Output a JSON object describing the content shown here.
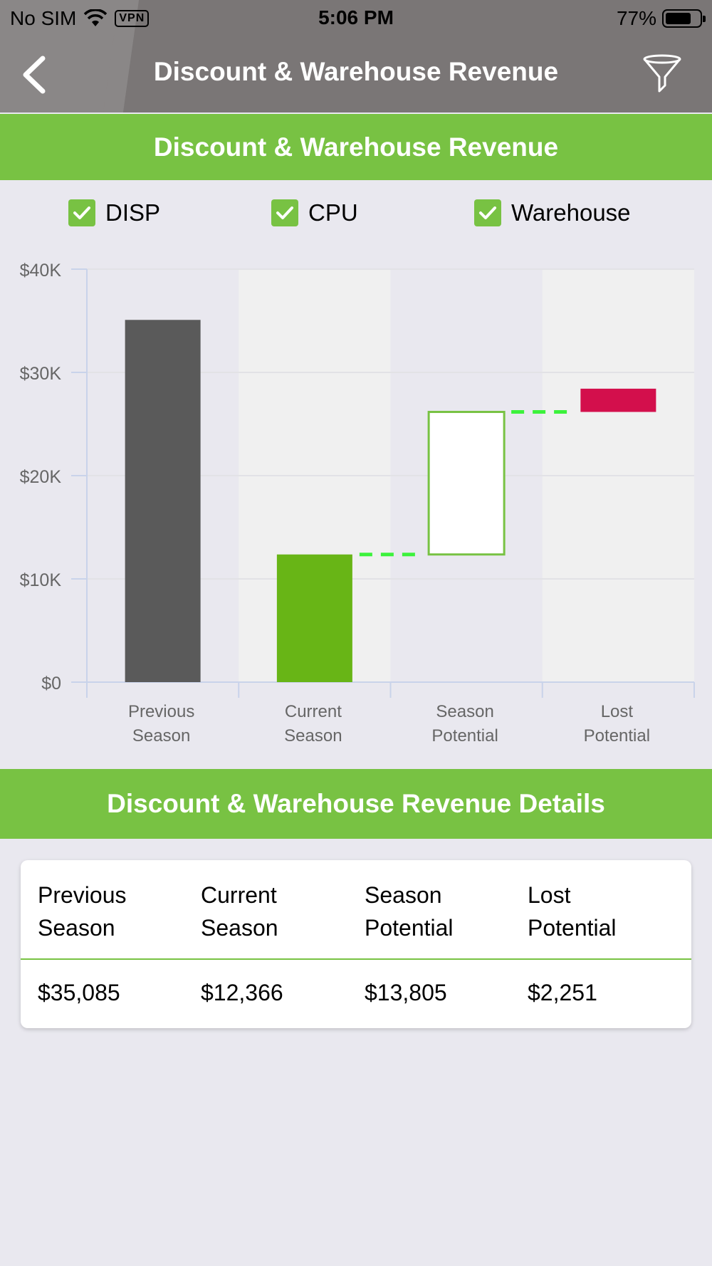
{
  "status_bar": {
    "carrier": "No SIM",
    "vpn": "VPN",
    "time": "5:06 PM",
    "battery": "77%"
  },
  "header": {
    "title": "Discount & Warehouse Revenue"
  },
  "chart_section": {
    "title": "Discount & Warehouse Revenue"
  },
  "legend": [
    {
      "label": "DISP",
      "checked": true
    },
    {
      "label": "CPU",
      "checked": true
    },
    {
      "label": "Warehouse",
      "checked": true
    }
  ],
  "colors": {
    "accent": "#78c243",
    "previous": "#5a5a5a",
    "current": "#68b516",
    "lost": "#d30f4c",
    "connector": "#3cf23c"
  },
  "chart_data": {
    "type": "bar",
    "subtype": "waterfall",
    "categories": [
      "Previous Season",
      "Current Season",
      "Season Potential",
      "Lost Potential"
    ],
    "category_lines": [
      [
        "Previous",
        "Season"
      ],
      [
        "Current",
        "Season"
      ],
      [
        "Season",
        "Potential"
      ],
      [
        "Lost",
        "Potential"
      ]
    ],
    "values": [
      35085,
      12366,
      13805,
      2251
    ],
    "bar_base": [
      0,
      0,
      12366,
      26171
    ],
    "bar_top": [
      35085,
      12366,
      26171,
      28422
    ],
    "y_ticks": [
      0,
      10000,
      20000,
      30000,
      40000
    ],
    "y_tick_labels": [
      "$0",
      "$10K",
      "$20K",
      "$30K",
      "$40K"
    ],
    "ylim": [
      0,
      40000
    ],
    "grid": true,
    "legend": "top"
  },
  "details_section": {
    "title": "Discount & Warehouse Revenue Details",
    "columns": [
      {
        "line1": "Previous",
        "line2": "Season",
        "value": "$35,085"
      },
      {
        "line1": "Current",
        "line2": "Season",
        "value": "$12,366"
      },
      {
        "line1": "Season",
        "line2": "Potential",
        "value": "$13,805"
      },
      {
        "line1": "Lost",
        "line2": "Potential",
        "value": "$2,251"
      }
    ]
  }
}
